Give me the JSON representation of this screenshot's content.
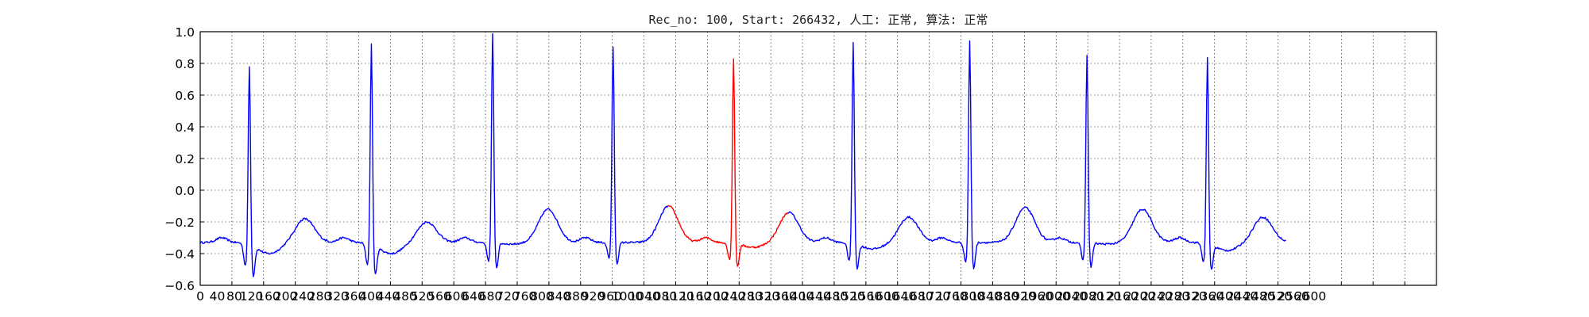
{
  "chart_data": {
    "type": "line",
    "title": "Rec_no: 100, Start: 266432, 人工: 正常, 算法: 正常",
    "xlabel": "",
    "ylabel": "",
    "xlim": [
      0,
      1560
    ],
    "ylim": [
      -0.6,
      1.0
    ],
    "yticks": [
      "1.0",
      "0.8",
      "0.6",
      "0.4",
      "0.2",
      "0.0",
      "−0.2",
      "−0.4",
      "−0.6"
    ],
    "ytick_values": [
      1.0,
      0.8,
      0.6,
      0.4,
      0.2,
      0.0,
      -0.2,
      -0.4,
      -0.6
    ],
    "xticks": [
      "0",
      "40",
      "80",
      "120",
      "160",
      "200",
      "240",
      "280",
      "320",
      "360",
      "400",
      "440",
      "480",
      "520",
      "560",
      "600",
      "640",
      "680",
      "720",
      "760",
      "800",
      "840",
      "880",
      "920",
      "960",
      "1000",
      "1040",
      "1080",
      "1120",
      "1160",
      "1200",
      "1240",
      "1280",
      "1320",
      "1360",
      "1400",
      "1440",
      "1480",
      "1520",
      "1560",
      "1600",
      "1640",
      "1680",
      "1720",
      "1760",
      "1800",
      "1840",
      "1880",
      "1920",
      "1960",
      "2000",
      "2040",
      "2080",
      "2120",
      "2160",
      "2200",
      "2240",
      "2280",
      "2320",
      "2360",
      "2400",
      "2440",
      "2480",
      "2520",
      "2560",
      "2600"
    ],
    "grid": true,
    "colors": {
      "normal": "#0000ff",
      "highlight": "#ff0000"
    },
    "x_end": 1370,
    "baseline": -0.33,
    "beats": [
      {
        "t": 62,
        "peak": 0.81,
        "q": -0.58,
        "s": -0.58,
        "tpk": -0.18,
        "st": -0.4
      },
      {
        "t": 216,
        "peak": 0.95,
        "q": -0.57,
        "s": -0.57,
        "tpk": -0.2,
        "st": -0.4
      },
      {
        "t": 369,
        "peak": 1.0,
        "q": -0.54,
        "s": -0.54,
        "tpk": -0.12,
        "st": -0.34
      },
      {
        "t": 521,
        "peak": 0.92,
        "q": -0.51,
        "s": -0.51,
        "tpk": -0.1,
        "st": -0.33
      },
      {
        "t": 673,
        "peak": 0.85,
        "q": -0.52,
        "s": -0.52,
        "tpk": -0.14,
        "st": -0.36
      },
      {
        "t": 824,
        "peak": 0.95,
        "q": -0.53,
        "s": -0.53,
        "tpk": -0.17,
        "st": -0.37
      },
      {
        "t": 971,
        "peak": 0.96,
        "q": -0.55,
        "s": -0.55,
        "tpk": -0.11,
        "st": -0.33
      },
      {
        "t": 1119,
        "peak": 0.87,
        "q": -0.53,
        "s": -0.53,
        "tpk": -0.12,
        "st": -0.34
      },
      {
        "t": 1271,
        "peak": 0.86,
        "q": -0.54,
        "s": -0.54,
        "tpk": -0.17,
        "st": -0.38
      }
    ],
    "highlight_range": [
      590,
      742
    ]
  }
}
